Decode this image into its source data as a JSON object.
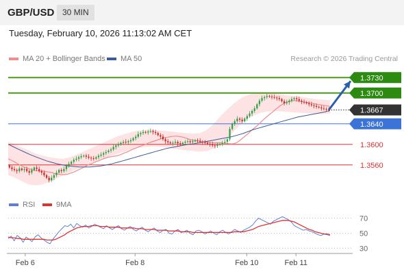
{
  "header": {
    "symbol": "GBP/USD",
    "timeframe": "30 MIN",
    "timestamp": "Tuesday, February 10, 2026 11:13:02 AM CET",
    "credit": "Research © 2026 Trading Central"
  },
  "legend": {
    "ma20_label": "MA 20 + Bollinger Bands",
    "ma50_label": "MA 50",
    "rsi_label": "RSI",
    "ma9_label": "9MA"
  },
  "colors": {
    "bull": "#2f9e44",
    "bear": "#c92a2a",
    "resistance": "#4c9a1a",
    "target_bg": "#2b8a0f",
    "pivot": "#3b73d9",
    "support": "#e03131",
    "ma20": "#f08c8c",
    "bollinger_fill": "#fde3e3",
    "ma50": "#3a5a9b",
    "rsi": "#5b7fd6",
    "rsi_ma": "#e03131",
    "current_price_bg": "#333333",
    "arrow": "#2c5fa8"
  },
  "chart_data": [
    {
      "type": "candlestick",
      "title": "GBP/USD",
      "timeframe": "30 MIN",
      "x_tick_labels": [
        "Feb 6",
        "Feb 8",
        "Feb 10",
        "Feb 11"
      ],
      "x_tick_positions": [
        9,
        67,
        126,
        152
      ],
      "ylim": [
        1.3505,
        1.3753
      ],
      "current_price": 1.3667,
      "levels": [
        {
          "value": 1.373,
          "label": "1.3730",
          "kind": "resistance"
        },
        {
          "value": 1.37,
          "label": "1.3700",
          "kind": "resistance"
        },
        {
          "value": 1.364,
          "label": "1.3640",
          "kind": "pivot"
        },
        {
          "value": 1.36,
          "label": "1.3600",
          "kind": "support"
        },
        {
          "value": 1.356,
          "label": "1.3560",
          "kind": "support"
        }
      ],
      "projection": {
        "from_price": 1.3667,
        "to_price": 1.373
      },
      "series_close": [
        1.3555,
        1.3552,
        1.355,
        1.3548,
        1.3553,
        1.355,
        1.3552,
        1.3548,
        1.3545,
        1.355,
        1.3555,
        1.3552,
        1.3548,
        1.3545,
        1.354,
        1.3535,
        1.353,
        1.3535,
        1.354,
        1.3545,
        1.355,
        1.3548,
        1.3552,
        1.3558,
        1.3562,
        1.3566,
        1.357,
        1.3572,
        1.3575,
        1.3577,
        1.3578,
        1.3576,
        1.3574,
        1.3573,
        1.3572,
        1.3575,
        1.3578,
        1.358,
        1.3583,
        1.3585,
        1.3588,
        1.359,
        1.3595,
        1.3598,
        1.36,
        1.3603,
        1.3605,
        1.3604,
        1.3606,
        1.3608,
        1.3612,
        1.3615,
        1.362,
        1.3622,
        1.3624,
        1.3623,
        1.3625,
        1.3626,
        1.3624,
        1.3622,
        1.3618,
        1.3615,
        1.361,
        1.3606,
        1.3604,
        1.3602,
        1.3603,
        1.3605,
        1.3602,
        1.36,
        1.3603,
        1.3605,
        1.3606,
        1.3604,
        1.3606,
        1.3608,
        1.3607,
        1.3605,
        1.3604,
        1.3603,
        1.3601,
        1.36,
        1.3598,
        1.3597,
        1.3599,
        1.3601,
        1.3603,
        1.3605,
        1.361,
        1.363,
        1.364,
        1.3645,
        1.365,
        1.3648,
        1.3645,
        1.365,
        1.3655,
        1.366,
        1.3665,
        1.367,
        1.3678,
        1.3685,
        1.369,
        1.3692,
        1.3694,
        1.3693,
        1.3692,
        1.3691,
        1.369,
        1.3688,
        1.3684,
        1.368,
        1.3682,
        1.3685,
        1.3688,
        1.369,
        1.3688,
        1.3685,
        1.3683,
        1.3682,
        1.368,
        1.3678,
        1.3676,
        1.3675,
        1.3673,
        1.3672,
        1.367,
        1.3669,
        1.3668,
        1.3667
      ],
      "ma20": [
        1.3572,
        1.3569,
        1.3566,
        1.3562,
        1.3559,
        1.3556,
        1.3554,
        1.3552,
        1.355,
        1.3549,
        1.3548,
        1.3548,
        1.3547,
        1.3546,
        1.3545,
        1.3543,
        1.3542,
        1.3541,
        1.3541,
        1.3542,
        1.3544,
        1.3546,
        1.3549,
        1.3552,
        1.3555,
        1.3558,
        1.3561,
        1.3563,
        1.3566,
        1.3568,
        1.3571,
        1.3573,
        1.3575,
        1.3576,
        1.3577,
        1.3578,
        1.358,
        1.3583,
        1.3585,
        1.3588,
        1.3591,
        1.3593,
        1.3596,
        1.3598,
        1.36,
        1.3603,
        1.3605,
        1.3607,
        1.3609,
        1.3611,
        1.3613,
        1.3614,
        1.3615,
        1.3616,
        1.3616,
        1.3615,
        1.3614,
        1.3612,
        1.361,
        1.3608,
        1.3607,
        1.3606,
        1.3605,
        1.3605,
        1.3604,
        1.3604,
        1.3603,
        1.3603,
        1.3603,
        1.3602,
        1.3602,
        1.3601,
        1.3601,
        1.3603,
        1.3607,
        1.3612,
        1.3617,
        1.3622,
        1.3628,
        1.3633,
        1.3638,
        1.3644,
        1.365,
        1.3655,
        1.366,
        1.3665,
        1.367,
        1.3675,
        1.3679,
        1.3682,
        1.3684,
        1.3685,
        1.3685,
        1.3684,
        1.3683,
        1.3682,
        1.3681,
        1.368,
        1.3679,
        1.3678,
        1.3677,
        1.3676,
        1.3675,
        1.3674
      ],
      "ma50": [
        1.36,
        1.3595,
        1.359,
        1.3585,
        1.358,
        1.3576,
        1.3572,
        1.3568,
        1.3565,
        1.3562,
        1.356,
        1.3558,
        1.3557,
        1.3556,
        1.3556,
        1.3556,
        1.3557,
        1.3558,
        1.356,
        1.3562,
        1.3565,
        1.3568,
        1.3571,
        1.3574,
        1.3577,
        1.358,
        1.3583,
        1.3586,
        1.3589,
        1.3592,
        1.3594,
        1.3596,
        1.3598,
        1.36,
        1.3601,
        1.3603,
        1.3605,
        1.3607,
        1.3609,
        1.3611,
        1.3613,
        1.3615,
        1.3618,
        1.3621,
        1.3625,
        1.3629,
        1.3632,
        1.3635,
        1.3638,
        1.3641,
        1.3644,
        1.3647,
        1.365,
        1.3653,
        1.3655,
        1.3657,
        1.3659,
        1.3661,
        1.3663,
        1.3666
      ],
      "bollinger_upper": [
        1.3605,
        1.36,
        1.3594,
        1.3588,
        1.3582,
        1.3578,
        1.3575,
        1.3573,
        1.3572,
        1.3575,
        1.358,
        1.3586,
        1.3592,
        1.3598,
        1.3604,
        1.361,
        1.3616,
        1.362,
        1.3624,
        1.3627,
        1.3628,
        1.3628,
        1.3627,
        1.3626,
        1.3625,
        1.3623,
        1.3622,
        1.3621,
        1.3622,
        1.3628,
        1.364,
        1.3655,
        1.3668,
        1.368,
        1.369,
        1.3696,
        1.37,
        1.3702,
        1.3701,
        1.3699,
        1.3697,
        1.3695,
        1.3694,
        1.3692,
        1.369,
        1.3688,
        1.3687,
        1.3686
      ],
      "bollinger_lower": [
        1.354,
        1.3535,
        1.3528,
        1.3522,
        1.352,
        1.3522,
        1.3527,
        1.3533,
        1.354,
        1.3546,
        1.3552,
        1.3557,
        1.3562,
        1.3567,
        1.3572,
        1.3577,
        1.3582,
        1.3586,
        1.359,
        1.3593,
        1.3595,
        1.3596,
        1.3595,
        1.3594,
        1.3592,
        1.359,
        1.3588,
        1.3587,
        1.3586,
        1.3587,
        1.3592,
        1.36,
        1.3612,
        1.3626,
        1.364,
        1.365,
        1.3657,
        1.3662,
        1.3664,
        1.3665,
        1.3664,
        1.3663,
        1.3662,
        1.3661,
        1.366,
        1.3659,
        1.3659,
        1.366
      ]
    },
    {
      "type": "line",
      "title": "RSI",
      "ylim": [
        25,
        75
      ],
      "y_tick_labels": [
        "70",
        "50",
        "30"
      ],
      "y_ticks": [
        70,
        50,
        30
      ],
      "series": [
        {
          "name": "RSI",
          "values": [
            43,
            46,
            40,
            47,
            44,
            38,
            45,
            42,
            39,
            45,
            48,
            44,
            41,
            38,
            36,
            42,
            47,
            52,
            56,
            60,
            59,
            62,
            57,
            63,
            60,
            58,
            61,
            57,
            59,
            62,
            60,
            58,
            56,
            60,
            57,
            55,
            58,
            60,
            56,
            54,
            57,
            59,
            55,
            53,
            56,
            58,
            54,
            52,
            55,
            57,
            53,
            51,
            54,
            55,
            50,
            49,
            53,
            55,
            51,
            52,
            54,
            50,
            48,
            53,
            54,
            52,
            49,
            51,
            53,
            50,
            48,
            52,
            54,
            51,
            49,
            52,
            55,
            53,
            51,
            54,
            56,
            58,
            61,
            66,
            70,
            68,
            66,
            64,
            62,
            66,
            68,
            70,
            72,
            70,
            68,
            65,
            60,
            58,
            56,
            54,
            55,
            53,
            52,
            50,
            48,
            47,
            49,
            48,
            47
          ]
        },
        {
          "name": "9MA",
          "values": [
            45,
            44,
            44,
            43,
            43,
            42,
            42,
            42,
            42,
            42,
            42,
            42,
            42,
            41,
            41,
            41,
            42,
            44,
            46,
            48,
            51,
            53,
            55,
            57,
            58,
            59,
            59,
            59,
            60,
            60,
            60,
            59,
            59,
            59,
            58,
            58,
            58,
            58,
            57,
            57,
            57,
            57,
            57,
            56,
            56,
            56,
            55,
            55,
            55,
            55,
            54,
            54,
            54,
            54,
            53,
            53,
            53,
            53,
            52,
            52,
            52,
            52,
            51,
            51,
            51,
            51,
            51,
            51,
            51,
            51,
            51,
            51,
            51,
            51,
            51,
            51,
            52,
            52,
            52,
            52,
            53,
            54,
            55,
            57,
            59,
            60,
            61,
            62,
            63,
            64,
            65,
            66,
            67,
            67,
            67,
            66,
            65,
            63,
            61,
            59,
            57,
            55,
            54,
            52,
            51,
            50,
            49,
            49,
            48
          ]
        }
      ]
    }
  ]
}
